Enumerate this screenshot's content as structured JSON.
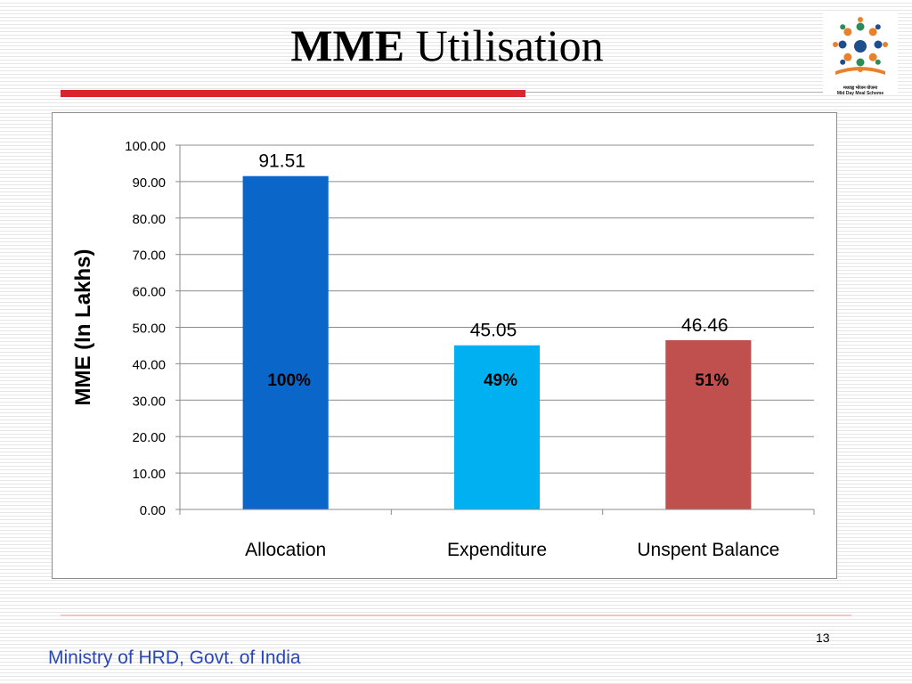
{
  "slide": {
    "title_bold": "MME",
    "title_rest": " Utilisation",
    "page_number": "13",
    "footer": "Ministry of HRD, Govt. of India",
    "logo_text_1": "मध्याह्न भोजन योजना",
    "logo_text_2": "Mid Day Meal Scheme"
  },
  "colors": {
    "accent_red": "#d9262c",
    "footer_blue": "#2a47b6"
  },
  "chart_data": {
    "type": "bar",
    "title": "",
    "xlabel": "",
    "ylabel": "MME (In Lakhs)",
    "ylim": [
      0,
      100
    ],
    "yticks": [
      "0.00",
      "10.00",
      "20.00",
      "30.00",
      "40.00",
      "50.00",
      "60.00",
      "70.00",
      "80.00",
      "90.00",
      "100.00"
    ],
    "grid": true,
    "categories": [
      "Allocation",
      "Expenditure",
      "Unspent Balance"
    ],
    "values": [
      91.51,
      45.05,
      46.46
    ],
    "value_labels": [
      "91.51",
      "45.05",
      "46.46"
    ],
    "percent_labels": [
      "100%",
      "49%",
      "51%"
    ],
    "bar_colors": [
      "#0a66c8",
      "#00b0f0",
      "#c0504d"
    ]
  }
}
